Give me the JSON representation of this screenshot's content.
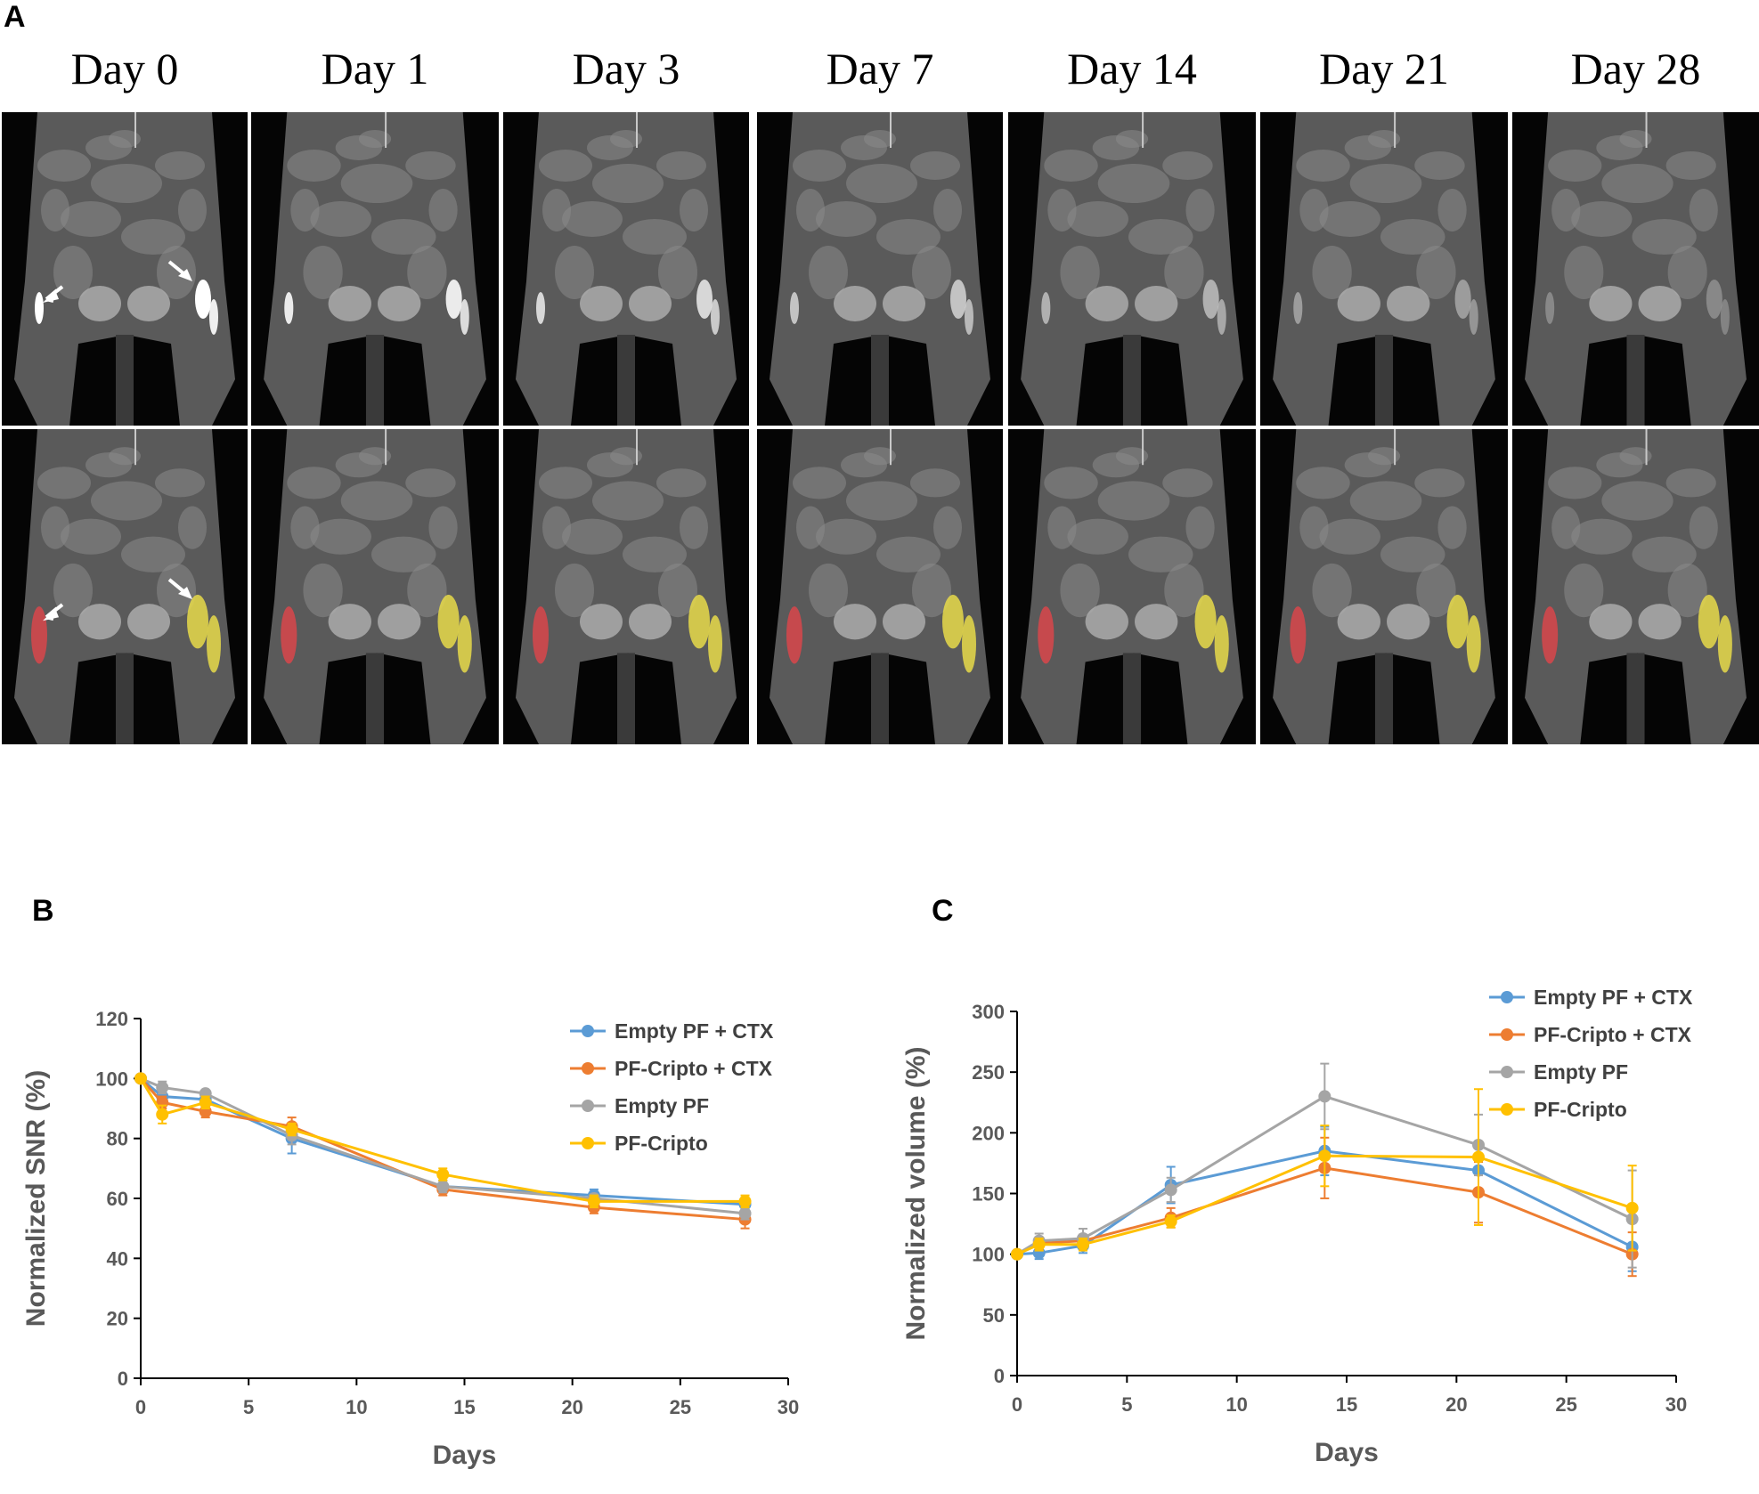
{
  "panels": {
    "a": "A",
    "b": "B",
    "c": "C"
  },
  "days": [
    "Day 0",
    "Day 1",
    "Day 3",
    "Day 7",
    "Day 14",
    "Day 21",
    "Day 28"
  ],
  "colors": {
    "blue": "#5B9BD5",
    "orange": "#ED7D31",
    "gray": "#A5A5A5",
    "yellow": "#FFC000",
    "seg_red": "#D9474B",
    "seg_yellow": "#E8DA4A"
  },
  "chart_data": [
    {
      "type": "line",
      "panel": "B",
      "xlabel": "Days",
      "ylabel": "Normalized SNR (%)",
      "xlim": [
        0,
        30
      ],
      "ylim": [
        0,
        120
      ],
      "xticks": [
        0,
        5,
        10,
        15,
        20,
        25,
        30
      ],
      "yticks": [
        0,
        20,
        40,
        60,
        80,
        100,
        120
      ],
      "x": [
        0,
        1,
        3,
        7,
        14,
        21,
        28
      ],
      "legend_position": "top-right",
      "grid": false,
      "series": [
        {
          "name": "Empty PF + CTX",
          "color": "#5B9BD5",
          "values": [
            100,
            94,
            93,
            80,
            64,
            61,
            58
          ],
          "errors": [
            0,
            2,
            2,
            5,
            2,
            2,
            2
          ]
        },
        {
          "name": "PF-Cripto + CTX",
          "color": "#ED7D31",
          "values": [
            100,
            92,
            89,
            84,
            63,
            57,
            53
          ],
          "errors": [
            0,
            2,
            2,
            3,
            2,
            2,
            3
          ]
        },
        {
          "name": "Empty PF",
          "color": "#A5A5A5",
          "values": [
            100,
            97,
            95,
            81,
            64,
            60,
            55
          ],
          "errors": [
            0,
            2,
            1,
            3,
            2,
            1,
            2
          ]
        },
        {
          "name": "PF-Cripto",
          "color": "#FFC000",
          "values": [
            100,
            88,
            92,
            83,
            68,
            59,
            59
          ],
          "errors": [
            0,
            3,
            2,
            2,
            2,
            2,
            2
          ]
        }
      ]
    },
    {
      "type": "line",
      "panel": "C",
      "xlabel": "Days",
      "ylabel": "Normalized volume (%)",
      "xlim": [
        0,
        30
      ],
      "ylim": [
        0,
        300
      ],
      "xticks": [
        0,
        5,
        10,
        15,
        20,
        25,
        30
      ],
      "yticks": [
        0,
        50,
        100,
        150,
        200,
        250,
        300
      ],
      "x": [
        0,
        1,
        3,
        7,
        14,
        21,
        28
      ],
      "legend_position": "top-right",
      "grid": false,
      "series": [
        {
          "name": "Empty PF + CTX",
          "color": "#5B9BD5",
          "values": [
            100,
            101,
            107,
            157,
            185,
            169,
            106
          ],
          "errors": [
            0,
            5,
            6,
            15,
            20,
            20,
            20
          ]
        },
        {
          "name": "PF-Cripto + CTX",
          "color": "#ED7D31",
          "values": [
            100,
            109,
            111,
            130,
            171,
            151,
            100
          ],
          "errors": [
            0,
            5,
            5,
            8,
            25,
            25,
            18
          ]
        },
        {
          "name": "Empty PF",
          "color": "#A5A5A5",
          "values": [
            100,
            111,
            113,
            153,
            230,
            190,
            129
          ],
          "errors": [
            0,
            6,
            8,
            10,
            27,
            25,
            40
          ]
        },
        {
          "name": "PF-Cripto",
          "color": "#FFC000",
          "values": [
            100,
            108,
            108,
            127,
            181,
            180,
            138
          ],
          "errors": [
            0,
            5,
            5,
            5,
            25,
            56,
            35
          ]
        }
      ]
    }
  ]
}
